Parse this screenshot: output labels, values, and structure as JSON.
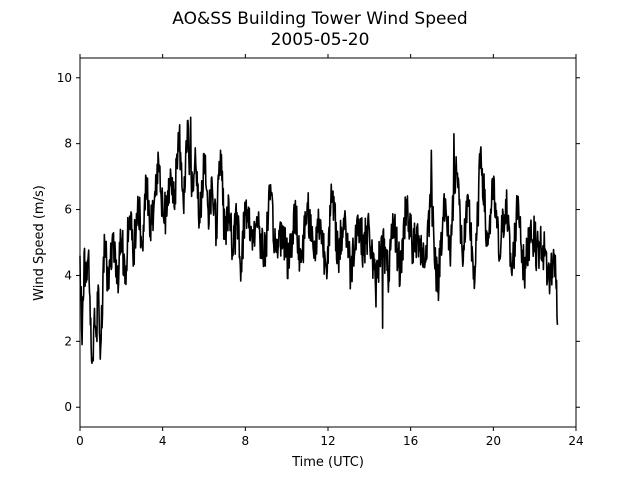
{
  "chart_data": {
    "type": "line",
    "title_line1": "AO&SS Building Tower Wind Speed",
    "title_line2": "2005-05-20",
    "xlabel": "Time (UTC)",
    "ylabel": "Wind Speed (m/s)",
    "xlim": [
      0,
      24
    ],
    "ylim": [
      -0.6,
      10.6
    ],
    "xticks": [
      0,
      4,
      8,
      12,
      16,
      20,
      24
    ],
    "xtick_labels": [
      "0",
      "4",
      "8",
      "12",
      "16",
      "20",
      "24"
    ],
    "yticks": [
      0,
      2,
      4,
      6,
      8,
      10
    ],
    "ytick_labels": [
      "0",
      "2",
      "4",
      "6",
      "8",
      "10"
    ],
    "grid": false,
    "line_color": "#000000",
    "series": [
      {
        "x": [
          0.0,
          0.1,
          0.2,
          0.3,
          0.4,
          0.5,
          0.6,
          0.7,
          0.8,
          0.9,
          1.0,
          1.2,
          1.4,
          1.6,
          1.8,
          2.0,
          2.2,
          2.4,
          2.6,
          2.8,
          3.0,
          3.2,
          3.4,
          3.6,
          3.8,
          4.0,
          4.2,
          4.4,
          4.6,
          4.8,
          5.0,
          5.2,
          5.4,
          5.6,
          5.8,
          6.0,
          6.2,
          6.4,
          6.6,
          6.8,
          7.0,
          7.2,
          7.4,
          7.6,
          7.8,
          8.0,
          8.3,
          8.6,
          8.9,
          9.2,
          9.5,
          9.8,
          10.1,
          10.4,
          10.7,
          11.0,
          11.3,
          11.6,
          11.9,
          12.2,
          12.5,
          12.8,
          13.1,
          13.4,
          13.7,
          14.0,
          14.3,
          14.6,
          14.9,
          15.2,
          15.5,
          15.8,
          16.1,
          16.4,
          16.7,
          17.0,
          17.3,
          17.6,
          17.9,
          18.2,
          18.5,
          18.8,
          19.1,
          19.4,
          19.7,
          20.0,
          20.3,
          20.6,
          20.9,
          21.2,
          21.5,
          21.8,
          22.1,
          22.4,
          22.7,
          23.0,
          23.1
        ],
        "y": [
          4.6,
          1.9,
          4.7,
          3.8,
          4.6,
          2.5,
          1.5,
          3.0,
          2.3,
          3.6,
          1.8,
          4.9,
          3.6,
          5.2,
          3.9,
          5.1,
          4.2,
          5.8,
          4.6,
          6.4,
          4.9,
          6.9,
          5.3,
          6.3,
          7.5,
          6.2,
          5.8,
          7.0,
          6.6,
          8.2,
          6.2,
          8.7,
          6.4,
          7.4,
          5.6,
          7.7,
          6.0,
          6.7,
          5.4,
          7.8,
          5.1,
          6.3,
          4.6,
          5.9,
          4.3,
          6.1,
          5.2,
          5.7,
          4.5,
          6.3,
          4.7,
          5.5,
          4.3,
          5.9,
          4.4,
          6.2,
          4.7,
          5.7,
          4.3,
          6.4,
          4.6,
          5.8,
          4.1,
          5.7,
          4.9,
          5.4,
          3.6,
          5.2,
          4.0,
          5.5,
          4.1,
          6.3,
          4.8,
          5.2,
          4.4,
          6.6,
          3.5,
          6.3,
          4.7,
          7.6,
          4.6,
          6.1,
          3.8,
          7.9,
          4.9,
          6.6,
          4.6,
          6.3,
          4.0,
          6.4,
          3.9,
          5.5,
          4.8,
          4.9,
          3.9,
          4.6,
          2.5
        ],
        "extremes_x": [
          0.55,
          5.35,
          18.1,
          17.0,
          14.65
        ],
        "extremes_y": [
          1.4,
          8.8,
          8.3,
          7.8,
          2.4
        ]
      }
    ]
  }
}
